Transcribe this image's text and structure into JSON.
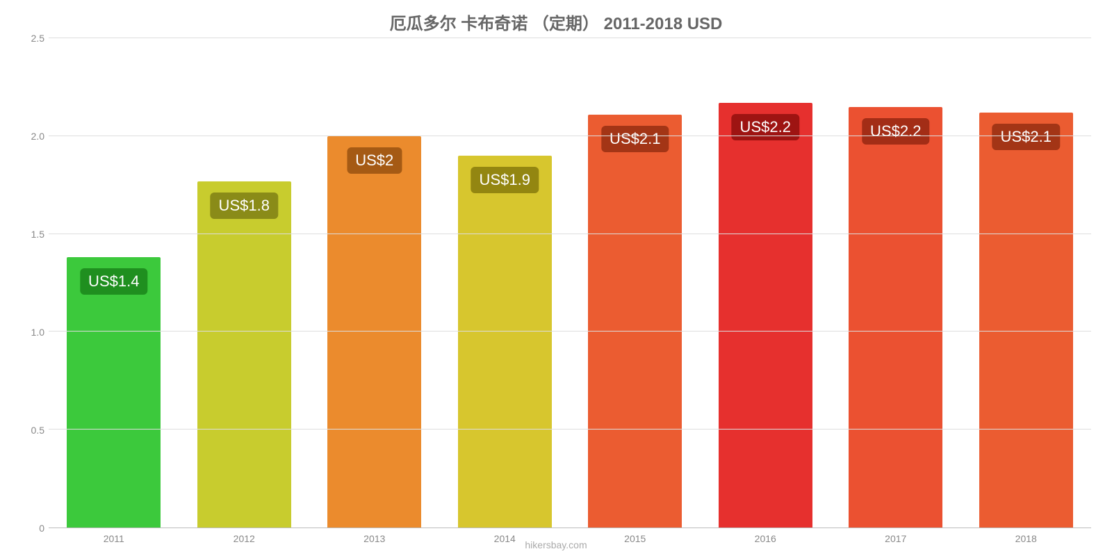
{
  "chart": {
    "type": "bar",
    "title": "厄瓜多尔 卡布奇诺 （定期） 2011-2018 USD",
    "title_color": "#666666",
    "title_fontsize": 24,
    "background_color": "#ffffff",
    "grid_color": "#dddddd",
    "axis_line_color": "#bdbdbd",
    "axis_label_color": "#888888",
    "axis_fontsize": 14,
    "ylim": [
      0,
      2.5
    ],
    "ytick_step": 0.5,
    "yticks": [
      "0",
      "0.5",
      "1.0",
      "1.5",
      "2.0",
      "2.5"
    ],
    "bar_width": 0.72,
    "value_label_fontsize": 22,
    "value_label_text_color": "#ffffff",
    "value_label_border_radius": 6,
    "categories": [
      "2011",
      "2012",
      "2013",
      "2014",
      "2015",
      "2016",
      "2017",
      "2018"
    ],
    "values": [
      1.38,
      1.77,
      2.0,
      1.9,
      2.11,
      2.17,
      2.15,
      2.12
    ],
    "value_labels": [
      "US$1.4",
      "US$1.8",
      "US$2",
      "US$1.9",
      "US$2.1",
      "US$2.2",
      "US$2.2",
      "US$2.1"
    ],
    "bar_colors": [
      "#3cc93c",
      "#c8cc2e",
      "#eb8b2d",
      "#d7c62e",
      "#eb5c31",
      "#e6302e",
      "#eb5131",
      "#eb5c31"
    ],
    "label_bg_colors": [
      "#1f8f1f",
      "#8a8b18",
      "#a55a14",
      "#938611",
      "#a33516",
      "#9e1412",
      "#a32d16",
      "#a33516"
    ],
    "credit": "hikersbay.com",
    "credit_color": "#aaaaaa"
  }
}
